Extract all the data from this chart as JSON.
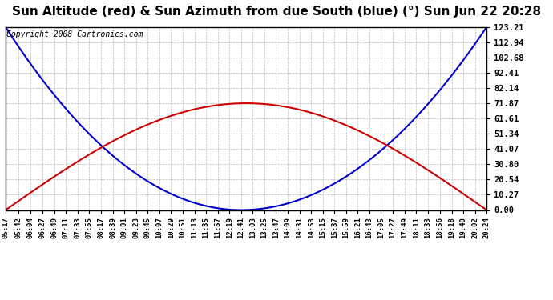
{
  "title": "Sun Altitude (red) & Sun Azimuth from due South (blue) (°) Sun Jun 22 20:28",
  "copyright": "Copyright 2008 Cartronics.com",
  "copyright_fontsize": 7,
  "title_fontsize": 11,
  "background_color": "#ffffff",
  "plot_bg_color": "#ffffff",
  "grid_color": "#aaaaaa",
  "yticks": [
    0.0,
    10.27,
    20.54,
    30.8,
    41.07,
    51.34,
    61.61,
    71.87,
    82.14,
    92.41,
    102.68,
    112.94,
    123.21
  ],
  "ymax": 123.21,
  "ymin": 0.0,
  "x_tick_labels": [
    "05:17",
    "05:42",
    "06:04",
    "06:27",
    "06:49",
    "07:11",
    "07:33",
    "07:55",
    "08:17",
    "08:39",
    "09:01",
    "09:23",
    "09:45",
    "10:07",
    "10:29",
    "10:51",
    "11:13",
    "11:35",
    "11:57",
    "12:19",
    "12:41",
    "13:03",
    "13:25",
    "13:47",
    "14:09",
    "14:31",
    "14:53",
    "15:15",
    "15:37",
    "15:59",
    "16:21",
    "16:43",
    "17:05",
    "17:27",
    "17:49",
    "18:11",
    "18:33",
    "18:56",
    "19:18",
    "19:40",
    "20:02",
    "20:24"
  ],
  "altitude_color": "#cc0000",
  "azimuth_color": "#0000cc",
  "line_width": 1.5,
  "altitude_peak": 71.87,
  "azimuth_max": 123.21,
  "noon_label": "12:41",
  "figwidth": 6.9,
  "figheight": 3.75,
  "dpi": 100
}
